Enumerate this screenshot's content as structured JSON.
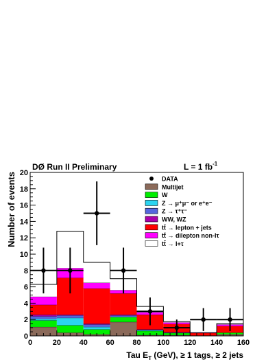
{
  "chart_data": {
    "type": "bar",
    "stacked": true,
    "title": "DØ Run II Preliminary",
    "lumi_prefix": "L = 1 fb",
    "lumi_exp": "-1",
    "xlabel_parts": [
      "Tau E",
      "T",
      " (GeV), ",
      "≥",
      " 1 tags, ",
      "≥",
      " 2 jets"
    ],
    "ylabel": "Number of events",
    "xlim": [
      0,
      160
    ],
    "ylim": [
      0,
      20
    ],
    "x_ticks": [
      0,
      20,
      40,
      60,
      80,
      100,
      120,
      140,
      160
    ],
    "y_ticks": [
      0,
      2,
      4,
      6,
      8,
      10,
      12,
      14,
      16,
      18,
      20
    ],
    "bin_edges": [
      0,
      20,
      40,
      60,
      80,
      100,
      120,
      140,
      160
    ],
    "series": [
      {
        "name": "Multijet",
        "color": "#8b6a5a",
        "values": [
          1.1,
          0.4,
          0.2,
          1.7,
          0.1,
          0.1,
          0.0,
          0.2
        ]
      },
      {
        "name": "W",
        "color": "#00ee00",
        "values": [
          0.8,
          0.9,
          0.6,
          0.6,
          0.5,
          0.25,
          0.05,
          0.2
        ]
      },
      {
        "name": "Z → μ⁺μ⁻ or e⁺e⁻",
        "color": "#2ad4f0",
        "values": [
          0.2,
          0.9,
          0.3,
          0.0,
          0.1,
          0.0,
          0.0,
          0.0
        ]
      },
      {
        "name": "Z → τ⁺τ⁻",
        "color": "#5566dd",
        "values": [
          0.3,
          0.3,
          0.3,
          0.2,
          0.05,
          0.05,
          0.0,
          0.0
        ]
      },
      {
        "name": "WW, WZ",
        "color": "#aa00aa",
        "values": [
          0.2,
          0.1,
          0.1,
          0.1,
          0.05,
          0.05,
          0.0,
          0.0
        ]
      },
      {
        "name": "tt̄ → lepton + jets",
        "color": "#ff0000",
        "values": [
          1.2,
          4.5,
          4.3,
          2.6,
          1.8,
          1.0,
          0.3,
          0.8
        ]
      },
      {
        "name": "tt̄ → dilepton non-lτ",
        "color": "#ff00ff",
        "values": [
          1.0,
          1.2,
          0.7,
          0.4,
          0.3,
          0.2,
          0.05,
          0.2
        ]
      },
      {
        "name": "tt̄ → l+τ",
        "color": "#ffffff",
        "values": [
          1.5,
          4.5,
          2.5,
          1.4,
          0.7,
          0.1,
          0.0,
          0.1
        ]
      }
    ],
    "data": {
      "name": "DATA",
      "x": [
        10,
        30,
        50,
        70,
        90,
        110,
        130,
        150
      ],
      "y": [
        8,
        8,
        15,
        8,
        3,
        1,
        2,
        2
      ],
      "yerr_low": [
        2.8,
        2.8,
        3.9,
        2.8,
        1.7,
        1.0,
        1.4,
        1.4
      ],
      "yerr_high": [
        2.8,
        2.8,
        3.9,
        2.8,
        1.7,
        1.0,
        1.4,
        1.4
      ]
    }
  }
}
